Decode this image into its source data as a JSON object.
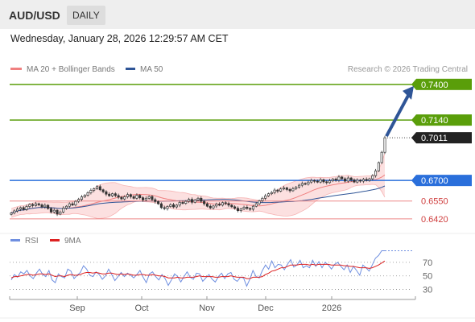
{
  "header": {
    "pair": "AUD/USD",
    "timeframe": "DAILY"
  },
  "datetime": "Wednesday, January 28, 2026 12:29:57 AM CET",
  "legend": {
    "ma20": {
      "label": "MA 20 + Bollinger Bands",
      "color": "#f08080"
    },
    "ma50": {
      "label": "MA 50",
      "color": "#2f5597"
    }
  },
  "copyright": "Research © 2026 Trading Central",
  "rsi_legend": {
    "rsi": {
      "label": "RSI",
      "color": "#6f8fe0"
    },
    "ma9": {
      "label": "9MA",
      "color": "#dd2222"
    }
  },
  "chart_data": [
    {
      "type": "candlestick",
      "ylim": [
        0.639,
        0.744
      ],
      "levels": [
        {
          "value": 0.74,
          "label": "0.7400",
          "kind": "resistance",
          "color": "#5a9e0a"
        },
        {
          "value": 0.714,
          "label": "0.7140",
          "kind": "resistance",
          "color": "#5a9e0a"
        },
        {
          "value": 0.7011,
          "label": "0.7011",
          "kind": "last",
          "color": "#222222"
        },
        {
          "value": 0.67,
          "label": "0.6700",
          "kind": "pivot",
          "color": "#2a6fdb"
        },
        {
          "value": 0.655,
          "label": "0.6550",
          "kind": "support",
          "color": "#ee8888"
        },
        {
          "value": 0.642,
          "label": "0.6420",
          "kind": "support",
          "color": "#ee8888"
        }
      ],
      "x_labels": [
        "Sep",
        "Oct",
        "Nov",
        "Dec",
        "2026"
      ],
      "close": [
        0.6463,
        0.6478,
        0.6491,
        0.6502,
        0.6488,
        0.651,
        0.6525,
        0.6517,
        0.653,
        0.6522,
        0.6508,
        0.6519,
        0.6495,
        0.647,
        0.6483,
        0.6455,
        0.647,
        0.6498,
        0.6512,
        0.653,
        0.6521,
        0.6548,
        0.6562,
        0.658,
        0.6592,
        0.661,
        0.6628,
        0.664,
        0.6655,
        0.6632,
        0.6618,
        0.66,
        0.6588,
        0.6603,
        0.659,
        0.6578,
        0.6565,
        0.6581,
        0.6597,
        0.6582,
        0.657,
        0.6592,
        0.6574,
        0.6558,
        0.657,
        0.6583,
        0.656,
        0.6546,
        0.653,
        0.6502,
        0.6495,
        0.651,
        0.6523,
        0.6507,
        0.652,
        0.654,
        0.6533,
        0.6548,
        0.6562,
        0.6541,
        0.6558,
        0.657,
        0.6548,
        0.653,
        0.6512,
        0.65,
        0.6514,
        0.6527,
        0.652,
        0.6538,
        0.6531,
        0.652,
        0.6508,
        0.6497,
        0.648,
        0.6492,
        0.6505,
        0.6496,
        0.649,
        0.6512,
        0.653,
        0.6552,
        0.657,
        0.6588,
        0.6603,
        0.6612,
        0.663,
        0.6622,
        0.6638,
        0.6646,
        0.6634,
        0.6625,
        0.664,
        0.6652,
        0.6665,
        0.6678,
        0.6673,
        0.6688,
        0.67,
        0.6695,
        0.6688,
        0.6705,
        0.669,
        0.6684,
        0.6698,
        0.671,
        0.6702,
        0.6725,
        0.6712,
        0.6695,
        0.6718,
        0.6704,
        0.6688,
        0.6702,
        0.6695,
        0.6708,
        0.67,
        0.6712,
        0.6735,
        0.677,
        0.683,
        0.6905,
        0.7011
      ]
    },
    {
      "type": "line",
      "title": "RSI",
      "ylim": [
        20,
        90
      ],
      "yticks": [
        70,
        50,
        30
      ],
      "series": [
        {
          "name": "RSI",
          "values": [
            44,
            52,
            48,
            56,
            53,
            58,
            50,
            46,
            54,
            60,
            52,
            49,
            58,
            44,
            40,
            53,
            49,
            47,
            60,
            57,
            46,
            51,
            55,
            65,
            60,
            51,
            49,
            56,
            52,
            45,
            50,
            60,
            52,
            43,
            49,
            55,
            49,
            54,
            51,
            47,
            52,
            58,
            48,
            40,
            53,
            56,
            49,
            44,
            52,
            46,
            36,
            44,
            53,
            49,
            41,
            49,
            56,
            48,
            45,
            54,
            53,
            42,
            47,
            52,
            45,
            41,
            49,
            54,
            46,
            53,
            55,
            45,
            42,
            48,
            47,
            35,
            45,
            58,
            49,
            47,
            58,
            66,
            60,
            72,
            62,
            67,
            66,
            59,
            67,
            74,
            63,
            66,
            73,
            62,
            65,
            62,
            73,
            64,
            71,
            62,
            70,
            66,
            60,
            67,
            70,
            64,
            59,
            66,
            55,
            64,
            58,
            51,
            66,
            62,
            57,
            66,
            76,
            80,
            87,
            87
          ]
        },
        {
          "name": "9MA",
          "values": [
            47,
            49,
            49,
            50,
            51,
            52,
            52,
            51,
            52,
            53,
            53,
            52,
            53,
            51,
            49,
            50,
            50,
            49,
            51,
            52,
            51,
            51,
            52,
            54,
            55,
            55,
            54,
            55,
            54,
            53,
            53,
            54,
            54,
            53,
            52,
            53,
            52,
            53,
            52,
            51,
            51,
            52,
            52,
            51,
            51,
            52,
            51,
            50,
            50,
            49,
            47,
            47,
            47,
            48,
            47,
            47,
            48,
            48,
            48,
            49,
            50,
            49,
            49,
            49,
            49,
            48,
            48,
            49,
            49,
            49,
            50,
            49,
            48,
            48,
            48,
            46,
            46,
            48,
            48,
            48,
            49,
            52,
            54,
            57,
            58,
            60,
            62,
            62,
            64,
            66,
            66,
            66,
            67,
            67,
            67,
            66,
            67,
            66,
            67,
            67,
            67,
            67,
            66,
            66,
            66,
            66,
            65,
            65,
            64,
            64,
            63,
            62,
            62,
            62,
            61,
            62,
            64,
            66,
            69,
            72
          ]
        }
      ]
    }
  ]
}
